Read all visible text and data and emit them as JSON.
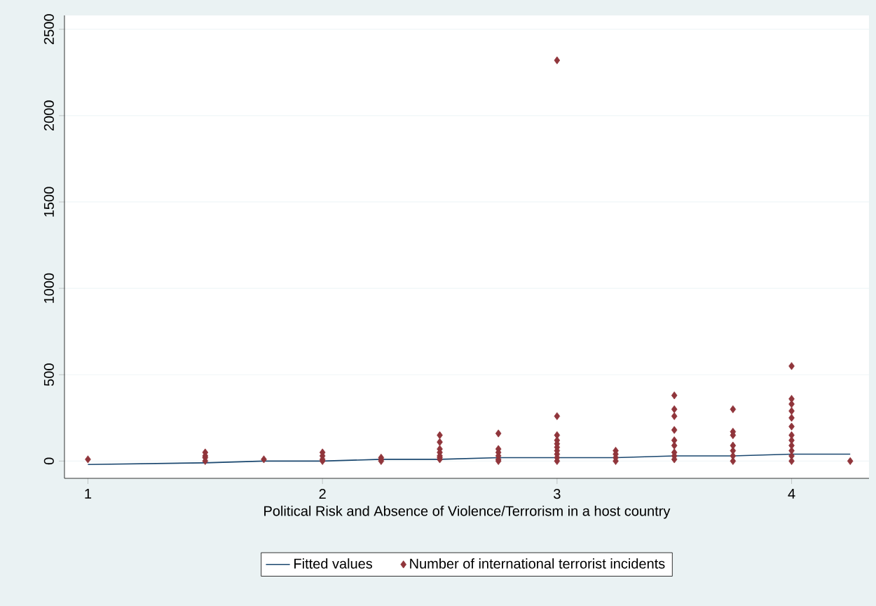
{
  "chart_data": {
    "type": "scatter",
    "xlabel": "Political Risk and Absence of Violence/Terrorism in a host country",
    "xlim": [
      0.9,
      4.33
    ],
    "ylim": [
      -100,
      2580
    ],
    "xticks": [
      1,
      2,
      3,
      4
    ],
    "yticks": [
      0,
      500,
      1000,
      1500,
      2000,
      2500
    ],
    "grid": "y",
    "legend": "bottom",
    "series": [
      {
        "name": "Fitted values",
        "type": "line",
        "color": "#1a476f",
        "marker": "none",
        "x": [
          1,
          1.5,
          1.75,
          2,
          2.25,
          2.5,
          2.75,
          3,
          3.25,
          3.5,
          3.75,
          4,
          4.25
        ],
        "values": [
          -20,
          -10,
          0,
          0,
          10,
          10,
          20,
          20,
          20,
          30,
          30,
          40,
          40
        ]
      },
      {
        "name": "Number of international terrorist incidents",
        "color": "#90353b",
        "marker": "diamond",
        "x": [
          1,
          1.5,
          1.5,
          1.5,
          1.5,
          1.75,
          2,
          2,
          2,
          2,
          2.25,
          2.25,
          2.25,
          2.5,
          2.5,
          2.5,
          2.5,
          2.5,
          2.5,
          2.5,
          2.75,
          2.75,
          2.75,
          2.75,
          2.75,
          2.75,
          3,
          3,
          3,
          3,
          3,
          3,
          3,
          3,
          3,
          3,
          3.25,
          3.25,
          3.25,
          3.25,
          3.5,
          3.5,
          3.5,
          3.5,
          3.5,
          3.5,
          3.5,
          3.5,
          3.5,
          3.75,
          3.75,
          3.75,
          3.75,
          3.75,
          3.75,
          3.75,
          4,
          4,
          4,
          4,
          4,
          4,
          4,
          4,
          4,
          4,
          4,
          4,
          4.25
        ],
        "values": [
          10,
          50,
          30,
          20,
          0,
          10,
          50,
          30,
          10,
          0,
          20,
          10,
          0,
          150,
          110,
          70,
          50,
          30,
          20,
          10,
          160,
          70,
          50,
          30,
          10,
          0,
          2320,
          260,
          150,
          120,
          100,
          80,
          60,
          40,
          20,
          0,
          60,
          40,
          20,
          0,
          380,
          300,
          260,
          180,
          120,
          90,
          50,
          30,
          10,
          300,
          170,
          150,
          90,
          60,
          30,
          0,
          550,
          360,
          330,
          290,
          250,
          200,
          150,
          120,
          90,
          60,
          30,
          0,
          0
        ]
      }
    ]
  }
}
